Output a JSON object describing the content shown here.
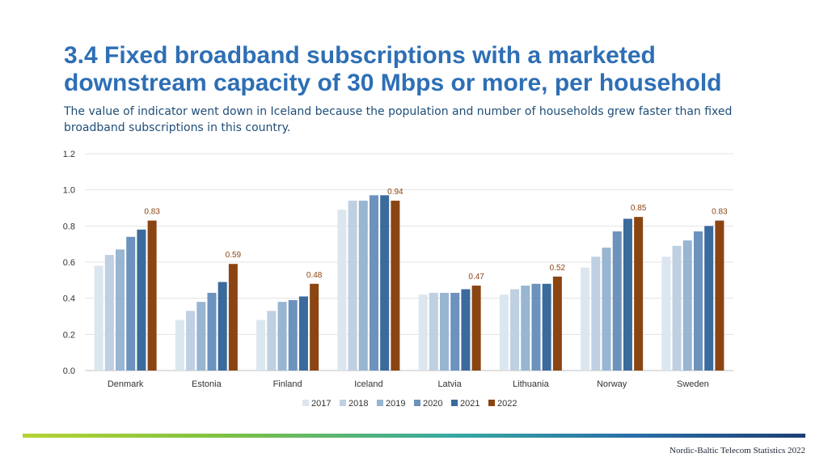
{
  "title_line1": "3.4 Fixed broadband subscriptions with a marketed",
  "title_line2": "downstream capacity of 30 Mbps or more, per household",
  "subtitle": "The value of indicator went down in Iceland because the population and number of households grew faster than fixed broadband subscriptions in this country.",
  "footer": "Nordic-Baltic Telecom Statistics 2022",
  "chart_data": {
    "type": "bar",
    "categories": [
      "Denmark",
      "Estonia",
      "Finland",
      "Iceland",
      "Latvia",
      "Lithuania",
      "Norway",
      "Sweden"
    ],
    "series": [
      {
        "name": "2017",
        "color": "#dce6ef",
        "values": [
          0.58,
          0.28,
          0.28,
          0.89,
          0.42,
          0.42,
          0.57,
          0.63
        ]
      },
      {
        "name": "2018",
        "color": "#bed0e2",
        "values": [
          0.64,
          0.33,
          0.33,
          0.94,
          0.43,
          0.45,
          0.63,
          0.69
        ]
      },
      {
        "name": "2019",
        "color": "#98b5d1",
        "values": [
          0.67,
          0.38,
          0.38,
          0.94,
          0.43,
          0.47,
          0.68,
          0.72
        ]
      },
      {
        "name": "2020",
        "color": "#6c92bd",
        "values": [
          0.74,
          0.43,
          0.39,
          0.97,
          0.43,
          0.48,
          0.77,
          0.77
        ]
      },
      {
        "name": "2021",
        "color": "#3b6a9c",
        "values": [
          0.78,
          0.49,
          0.41,
          0.97,
          0.45,
          0.48,
          0.84,
          0.8
        ]
      },
      {
        "name": "2022",
        "color": "#8b4513",
        "values": [
          0.83,
          0.59,
          0.48,
          0.94,
          0.47,
          0.52,
          0.85,
          0.83
        ]
      }
    ],
    "data_labels": [
      "0.83",
      "0.59",
      "0.48",
      "0.94",
      "0.47",
      "0.52",
      "0.85",
      "0.83"
    ],
    "y_ticks": [
      "0.0",
      "0.2",
      "0.4",
      "0.6",
      "0.8",
      "1.0",
      "1.2"
    ],
    "ylim": [
      0,
      1.2
    ],
    "grid": true,
    "legend_position": "bottom",
    "label_color": "#8b4513"
  }
}
